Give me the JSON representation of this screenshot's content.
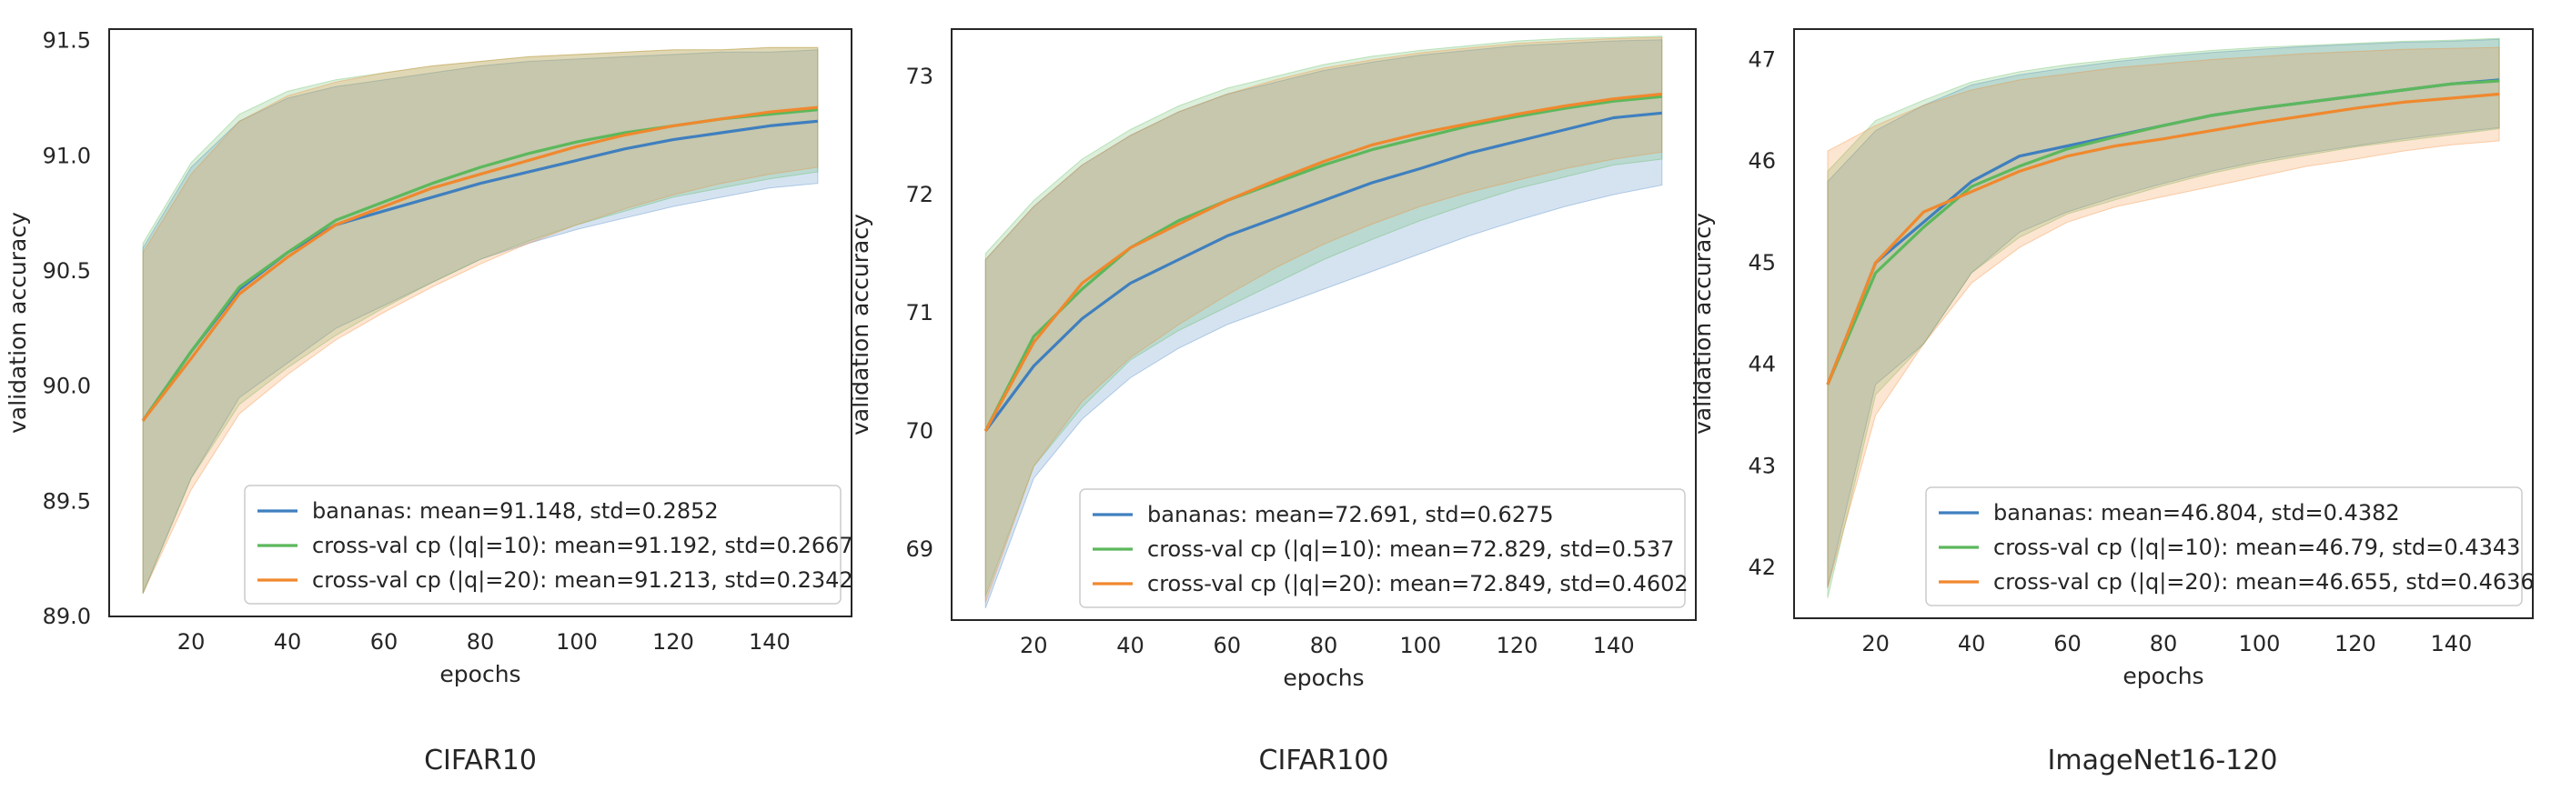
{
  "colors": {
    "bananas": "#3f7fbf",
    "cv10": "#5cb85c",
    "cv20": "#f0882e"
  },
  "chart_data": [
    {
      "type": "line",
      "caption": "CIFAR10",
      "xlabel": "epochs",
      "ylabel": "validation accuracy",
      "xlim": [
        3,
        157
      ],
      "ylim": [
        89.0,
        91.55
      ],
      "xticks": [
        20,
        40,
        60,
        80,
        100,
        120,
        140
      ],
      "yticks": [
        89.0,
        89.5,
        90.0,
        90.5,
        91.0,
        91.5
      ],
      "ytick_labels": [
        "89.0",
        "89.5",
        "90.0",
        "90.5",
        "91.0",
        "91.5"
      ],
      "grid": false,
      "legend_position": "lower-right",
      "x": [
        10,
        20,
        30,
        40,
        50,
        60,
        70,
        80,
        90,
        100,
        110,
        120,
        130,
        140,
        150
      ],
      "series": [
        {
          "name": "bananas: mean=91.148, std=0.2852",
          "color_key": "bananas",
          "mean": [
            89.85,
            90.15,
            90.42,
            90.58,
            90.7,
            90.76,
            90.82,
            90.88,
            90.93,
            90.98,
            91.03,
            91.07,
            91.1,
            91.13,
            91.15
          ],
          "lower": [
            89.1,
            89.6,
            89.95,
            90.1,
            90.25,
            90.35,
            90.45,
            90.55,
            90.62,
            90.68,
            90.73,
            90.78,
            90.82,
            90.86,
            90.88
          ],
          "upper": [
            90.6,
            90.95,
            91.15,
            91.25,
            91.3,
            91.33,
            91.36,
            91.39,
            91.41,
            91.42,
            91.43,
            91.44,
            91.45,
            91.45,
            91.46
          ]
        },
        {
          "name": "cross-val cp (|q|=10): mean=91.192, std=0.2667",
          "color_key": "cv10",
          "mean": [
            89.85,
            90.15,
            90.43,
            90.58,
            90.72,
            90.8,
            90.88,
            90.95,
            91.01,
            91.06,
            91.1,
            91.13,
            91.16,
            91.18,
            91.2
          ],
          "lower": [
            89.1,
            89.6,
            89.92,
            90.08,
            90.22,
            90.34,
            90.45,
            90.55,
            90.63,
            90.7,
            90.76,
            90.82,
            90.86,
            90.9,
            90.93
          ],
          "upper": [
            90.62,
            90.97,
            91.18,
            91.28,
            91.33,
            91.36,
            91.39,
            91.41,
            91.43,
            91.44,
            91.45,
            91.46,
            91.46,
            91.47,
            91.47
          ]
        },
        {
          "name": "cross-val cp (|q|=20): mean=91.213, std=0.2342",
          "color_key": "cv20",
          "mean": [
            89.85,
            90.12,
            90.4,
            90.56,
            90.7,
            90.78,
            90.86,
            90.92,
            90.98,
            91.04,
            91.09,
            91.13,
            91.16,
            91.19,
            91.21
          ],
          "lower": [
            89.1,
            89.55,
            89.88,
            90.05,
            90.2,
            90.32,
            90.43,
            90.53,
            90.62,
            90.7,
            90.77,
            90.83,
            90.88,
            90.92,
            90.95
          ],
          "upper": [
            90.58,
            90.92,
            91.15,
            91.26,
            91.32,
            91.36,
            91.39,
            91.41,
            91.43,
            91.44,
            91.45,
            91.46,
            91.46,
            91.47,
            91.47
          ]
        }
      ]
    },
    {
      "type": "line",
      "caption": "CIFAR100",
      "xlabel": "epochs",
      "ylabel": "validation accuracy",
      "xlim": [
        3,
        157
      ],
      "ylim": [
        68.4,
        73.4
      ],
      "xticks": [
        20,
        40,
        60,
        80,
        100,
        120,
        140
      ],
      "yticks": [
        69,
        70,
        71,
        72,
        73
      ],
      "ytick_labels": [
        "69",
        "70",
        "71",
        "72",
        "73"
      ],
      "grid": false,
      "legend_position": "lower-right",
      "x": [
        10,
        20,
        30,
        40,
        50,
        60,
        70,
        80,
        90,
        100,
        110,
        120,
        130,
        140,
        150
      ],
      "series": [
        {
          "name": "bananas: mean=72.691, std=0.6275",
          "color_key": "bananas",
          "mean": [
            70.0,
            70.55,
            70.95,
            71.25,
            71.45,
            71.65,
            71.8,
            71.95,
            72.1,
            72.22,
            72.35,
            72.45,
            72.55,
            72.65,
            72.69
          ],
          "lower": [
            68.5,
            69.6,
            70.1,
            70.45,
            70.7,
            70.9,
            71.05,
            71.2,
            71.35,
            71.5,
            71.65,
            71.78,
            71.9,
            72.0,
            72.08
          ],
          "upper": [
            71.45,
            71.9,
            72.25,
            72.5,
            72.7,
            72.85,
            72.95,
            73.05,
            73.12,
            73.18,
            73.22,
            73.26,
            73.28,
            73.3,
            73.31
          ]
        },
        {
          "name": "cross-val cp (|q|=10): mean=72.829, std=0.537",
          "color_key": "cv10",
          "mean": [
            70.0,
            70.8,
            71.2,
            71.55,
            71.78,
            71.95,
            72.1,
            72.25,
            72.38,
            72.48,
            72.58,
            72.66,
            72.73,
            72.79,
            72.83
          ],
          "lower": [
            68.6,
            69.7,
            70.2,
            70.6,
            70.85,
            71.05,
            71.25,
            71.45,
            71.62,
            71.78,
            71.92,
            72.05,
            72.15,
            72.25,
            72.3
          ],
          "upper": [
            71.5,
            71.95,
            72.3,
            72.55,
            72.75,
            72.9,
            73.0,
            73.1,
            73.17,
            73.22,
            73.26,
            73.3,
            73.32,
            73.33,
            73.34
          ]
        },
        {
          "name": "cross-val cp (|q|=20): mean=72.849, std=0.4602",
          "color_key": "cv20",
          "mean": [
            70.0,
            70.75,
            71.25,
            71.55,
            71.75,
            71.95,
            72.12,
            72.28,
            72.42,
            72.52,
            72.6,
            72.68,
            72.75,
            72.81,
            72.85
          ],
          "lower": [
            68.55,
            69.7,
            70.25,
            70.62,
            70.9,
            71.15,
            71.38,
            71.58,
            71.75,
            71.9,
            72.02,
            72.12,
            72.22,
            72.3,
            72.36
          ],
          "upper": [
            71.45,
            71.9,
            72.25,
            72.5,
            72.7,
            72.85,
            72.97,
            73.07,
            73.14,
            73.2,
            73.24,
            73.28,
            73.3,
            73.32,
            73.33
          ]
        }
      ]
    },
    {
      "type": "line",
      "caption": "ImageNet16-120",
      "xlabel": "epochs",
      "ylabel": "validation accuracy",
      "xlim": [
        3,
        157
      ],
      "ylim": [
        41.5,
        47.3
      ],
      "xticks": [
        20,
        40,
        60,
        80,
        100,
        120,
        140
      ],
      "yticks": [
        42,
        43,
        44,
        45,
        46,
        47
      ],
      "ytick_labels": [
        "42",
        "43",
        "44",
        "45",
        "46",
        "47"
      ],
      "grid": false,
      "legend_position": "lower-right",
      "x": [
        10,
        20,
        30,
        40,
        50,
        60,
        70,
        80,
        90,
        100,
        110,
        120,
        130,
        140,
        150
      ],
      "series": [
        {
          "name": "bananas: mean=46.804, std=0.4382",
          "color_key": "bananas",
          "mean": [
            43.8,
            45.0,
            45.4,
            45.8,
            46.05,
            46.15,
            46.25,
            46.35,
            46.45,
            46.52,
            46.58,
            46.64,
            46.7,
            46.76,
            46.8
          ],
          "lower": [
            41.8,
            43.8,
            44.2,
            44.9,
            45.3,
            45.5,
            45.65,
            45.78,
            45.9,
            46.0,
            46.08,
            46.15,
            46.22,
            46.28,
            46.33
          ],
          "upper": [
            45.8,
            46.3,
            46.55,
            46.75,
            46.85,
            46.92,
            46.98,
            47.03,
            47.07,
            47.1,
            47.13,
            47.15,
            47.17,
            47.18,
            47.2
          ]
        },
        {
          "name": "cross-val cp (|q|=10): mean=46.79, std=0.4343",
          "color_key": "cv10",
          "mean": [
            43.8,
            44.9,
            45.35,
            45.75,
            45.95,
            46.12,
            46.24,
            46.35,
            46.45,
            46.52,
            46.58,
            46.64,
            46.7,
            46.76,
            46.79
          ],
          "lower": [
            41.7,
            43.7,
            44.2,
            44.9,
            45.25,
            45.48,
            45.62,
            45.76,
            45.88,
            45.98,
            46.06,
            46.14,
            46.2,
            46.26,
            46.32
          ],
          "upper": [
            45.9,
            46.4,
            46.6,
            46.78,
            46.88,
            46.95,
            47.0,
            47.05,
            47.09,
            47.12,
            47.14,
            47.16,
            47.18,
            47.19,
            47.21
          ]
        },
        {
          "name": "cross-val cp (|q|=20): mean=46.655, std=0.4636",
          "color_key": "cv20",
          "mean": [
            43.8,
            45.0,
            45.5,
            45.7,
            45.9,
            46.05,
            46.15,
            46.22,
            46.3,
            46.38,
            46.45,
            46.52,
            46.58,
            46.62,
            46.66
          ],
          "lower": [
            41.8,
            43.5,
            44.2,
            44.8,
            45.15,
            45.4,
            45.55,
            45.65,
            45.75,
            45.85,
            45.95,
            46.02,
            46.1,
            46.16,
            46.2
          ],
          "upper": [
            46.1,
            46.35,
            46.55,
            46.7,
            46.8,
            46.86,
            46.92,
            46.96,
            47.0,
            47.03,
            47.06,
            47.08,
            47.1,
            47.11,
            47.12
          ]
        }
      ]
    }
  ]
}
